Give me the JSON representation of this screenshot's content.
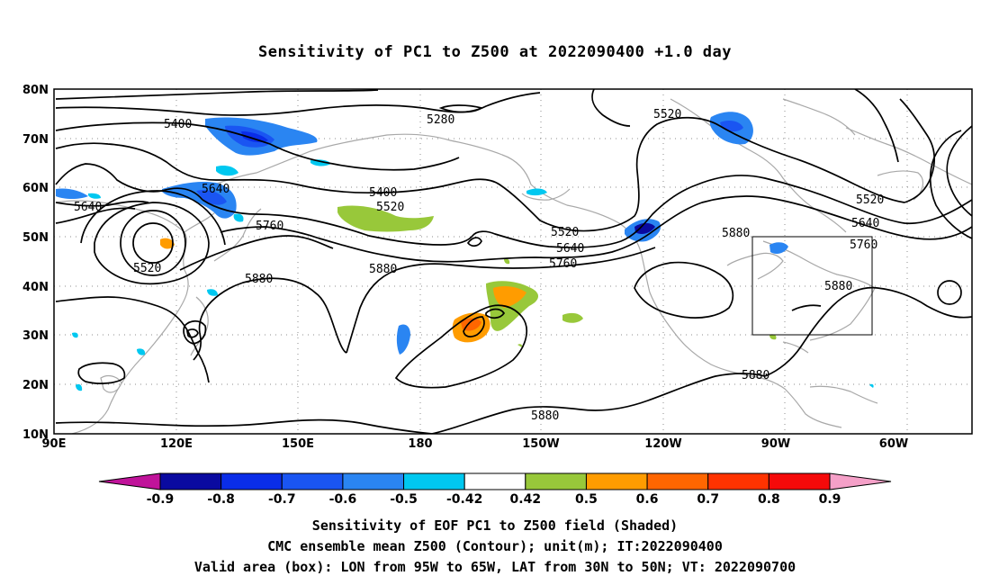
{
  "title": "Sensitivity of PC1 to Z500 at 2022090400 +1.0 day",
  "map": {
    "lat_labels": [
      "80N",
      "70N",
      "60N",
      "50N",
      "40N",
      "30N",
      "20N",
      "10N"
    ],
    "lon_labels": [
      "90E",
      "120E",
      "150E",
      "180",
      "150W",
      "120W",
      "90W",
      "60W"
    ],
    "contour_labels": [
      "5280",
      "5400",
      "5400",
      "5520",
      "5520",
      "5520",
      "5520",
      "5640",
      "5640",
      "5640",
      "5640",
      "5760",
      "5760",
      "5760",
      "5880",
      "5880",
      "5880",
      "5880",
      "5880",
      "5880",
      "5520"
    ],
    "contour_color": "#000000",
    "coast_color": "#a8a8a8"
  },
  "colorbar": {
    "labels": [
      "-0.9",
      "-0.8",
      "-0.7",
      "-0.6",
      "-0.5",
      "-0.42",
      "0.42",
      "0.5",
      "0.6",
      "0.7",
      "0.8",
      "0.9"
    ],
    "colors": [
      "#c0139a",
      "#0a0aa0",
      "#0a2de8",
      "#1a55f2",
      "#2a85f2",
      "#00c8f0",
      "#ffffff",
      "#98c83a",
      "#ff9c00",
      "#ff6600",
      "#ff3300",
      "#f50a0a",
      "#f5a0c8"
    ]
  },
  "captions": [
    "Sensitivity of EOF PC1 to Z500 field (Shaded)",
    "CMC ensemble mean Z500 (Contour); unit(m); IT:2022090400",
    "Valid area (box): LON from 95W to 65W, LAT from 30N to 50N; VT: 2022090700"
  ]
}
